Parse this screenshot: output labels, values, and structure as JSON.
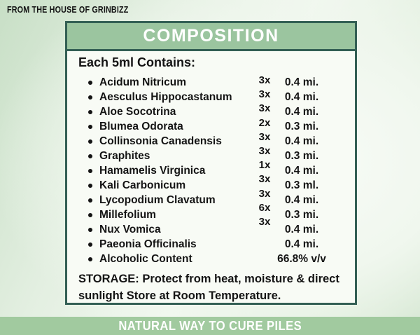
{
  "brand": {
    "tagline": "FROM THE HOUSE OF GRINBIZZ"
  },
  "card": {
    "title": "COMPOSITION",
    "subtitle": "Each 5ml Contains:",
    "rows": [
      {
        "name": "Acidum Nitricum",
        "potency": "3x",
        "qty": "0.4 mi."
      },
      {
        "name": "Aesculus Hippocastanum",
        "potency": "3x",
        "qty": "0.4 mi."
      },
      {
        "name": "Aloe Socotrina",
        "potency": "3x",
        "qty": "0.4 mi."
      },
      {
        "name": "Blumea Odorata",
        "potency": "2x",
        "qty": "0.3 mi."
      },
      {
        "name": "Collinsonia Canadensis",
        "potency": "3x",
        "qty": "0.4 mi."
      },
      {
        "name": "Graphites",
        "potency": "3x",
        "qty": "0.3 mi."
      },
      {
        "name": "Hamamelis Virginica",
        "potency": "1x",
        "qty": "0.4 mi."
      },
      {
        "name": "Kali Carbonicum",
        "potency": "3x",
        "qty": "0.3 ml."
      },
      {
        "name": "Lycopodium Clavatum",
        "potency": "3x",
        "qty": "0.4 mi."
      },
      {
        "name": "Millefolium",
        "potency": "6x",
        "qty": "0.3 mi."
      },
      {
        "name": "Nux Vomica",
        "potency": "3x",
        "qty": "0.4 mi."
      },
      {
        "name": "Paeonia Officinalis",
        "qty": "0.4 mi."
      },
      {
        "name": "Alcoholic Content",
        "qty": "66.8% v/v"
      }
    ],
    "storage": "STORAGE: Protect from heat, moisture & direct sunlight Store at Room Temperature."
  },
  "footer": {
    "banner": "NATURAL WAY TO CURE PILES"
  },
  "colors": {
    "card_border_teal": "#335f54",
    "header_green": "#9bc59f",
    "banner_green": "#a1ca9f",
    "page_bg_green": "#cfe3cc",
    "text_black": "#141414",
    "title_white": "#ffffff"
  }
}
